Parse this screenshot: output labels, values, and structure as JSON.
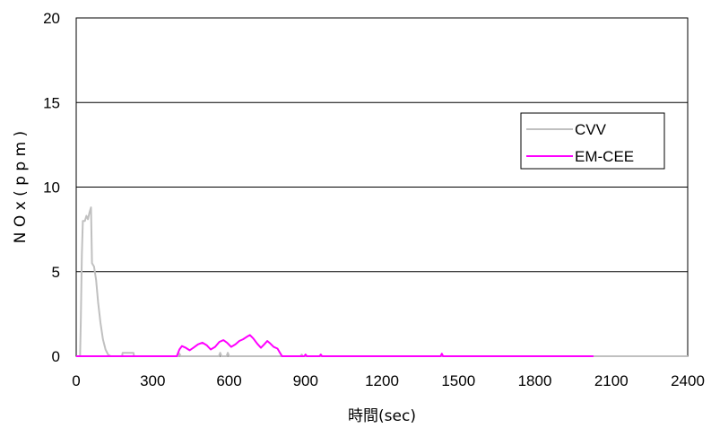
{
  "chart_data": {
    "type": "line",
    "title": "",
    "xlabel": "時間(sec)",
    "ylabel": "N O x ( p p m )",
    "xlim": [
      0,
      2400
    ],
    "ylim": [
      0,
      20
    ],
    "x_ticks": [
      "0",
      "300",
      "600",
      "900",
      "1200",
      "1500",
      "1800",
      "2100",
      "2400"
    ],
    "y_ticks": [
      "0",
      "5",
      "10",
      "15",
      "20"
    ],
    "grid": "horizontal",
    "legend_position": "right",
    "series": [
      {
        "name": "CVV",
        "color": "#c0c0c0",
        "points": [
          [
            0,
            0
          ],
          [
            15,
            0
          ],
          [
            18,
            2
          ],
          [
            22,
            6
          ],
          [
            26,
            8
          ],
          [
            34,
            8
          ],
          [
            40,
            8.3
          ],
          [
            46,
            8.1
          ],
          [
            52,
            8.5
          ],
          [
            58,
            8.8
          ],
          [
            62,
            5.5
          ],
          [
            70,
            5.3
          ],
          [
            78,
            4.5
          ],
          [
            86,
            3.2
          ],
          [
            95,
            2.0
          ],
          [
            105,
            1.0
          ],
          [
            115,
            0.4
          ],
          [
            125,
            0.1
          ],
          [
            135,
            0
          ],
          [
            180,
            0
          ],
          [
            182,
            0.2
          ],
          [
            225,
            0.2
          ],
          [
            227,
            0
          ],
          [
            400,
            0
          ],
          [
            405,
            0.15
          ],
          [
            410,
            0
          ],
          [
            560,
            0
          ],
          [
            565,
            0.2
          ],
          [
            570,
            0
          ],
          [
            590,
            0
          ],
          [
            595,
            0.2
          ],
          [
            600,
            0
          ],
          [
            880,
            0
          ],
          [
            885,
            0.1
          ],
          [
            890,
            0
          ],
          [
            2400,
            0
          ]
        ]
      },
      {
        "name": "EM-CEE",
        "color": "#ff00ff",
        "points": [
          [
            0,
            0
          ],
          [
            395,
            0
          ],
          [
            405,
            0.4
          ],
          [
            415,
            0.6
          ],
          [
            430,
            0.5
          ],
          [
            445,
            0.35
          ],
          [
            460,
            0.5
          ],
          [
            478,
            0.7
          ],
          [
            495,
            0.8
          ],
          [
            512,
            0.65
          ],
          [
            528,
            0.4
          ],
          [
            545,
            0.55
          ],
          [
            562,
            0.85
          ],
          [
            578,
            0.95
          ],
          [
            592,
            0.8
          ],
          [
            608,
            0.55
          ],
          [
            625,
            0.7
          ],
          [
            640,
            0.9
          ],
          [
            655,
            1.0
          ],
          [
            670,
            1.15
          ],
          [
            682,
            1.25
          ],
          [
            695,
            1.05
          ],
          [
            710,
            0.75
          ],
          [
            725,
            0.5
          ],
          [
            738,
            0.7
          ],
          [
            750,
            0.9
          ],
          [
            762,
            0.75
          ],
          [
            775,
            0.55
          ],
          [
            790,
            0.45
          ],
          [
            800,
            0.2
          ],
          [
            808,
            0
          ],
          [
            895,
            0
          ],
          [
            900,
            0.1
          ],
          [
            905,
            0
          ],
          [
            955,
            0
          ],
          [
            960,
            0.1
          ],
          [
            965,
            0
          ],
          [
            1430,
            0
          ],
          [
            1435,
            0.15
          ],
          [
            1440,
            0
          ],
          [
            2030,
            0
          ]
        ]
      }
    ]
  }
}
